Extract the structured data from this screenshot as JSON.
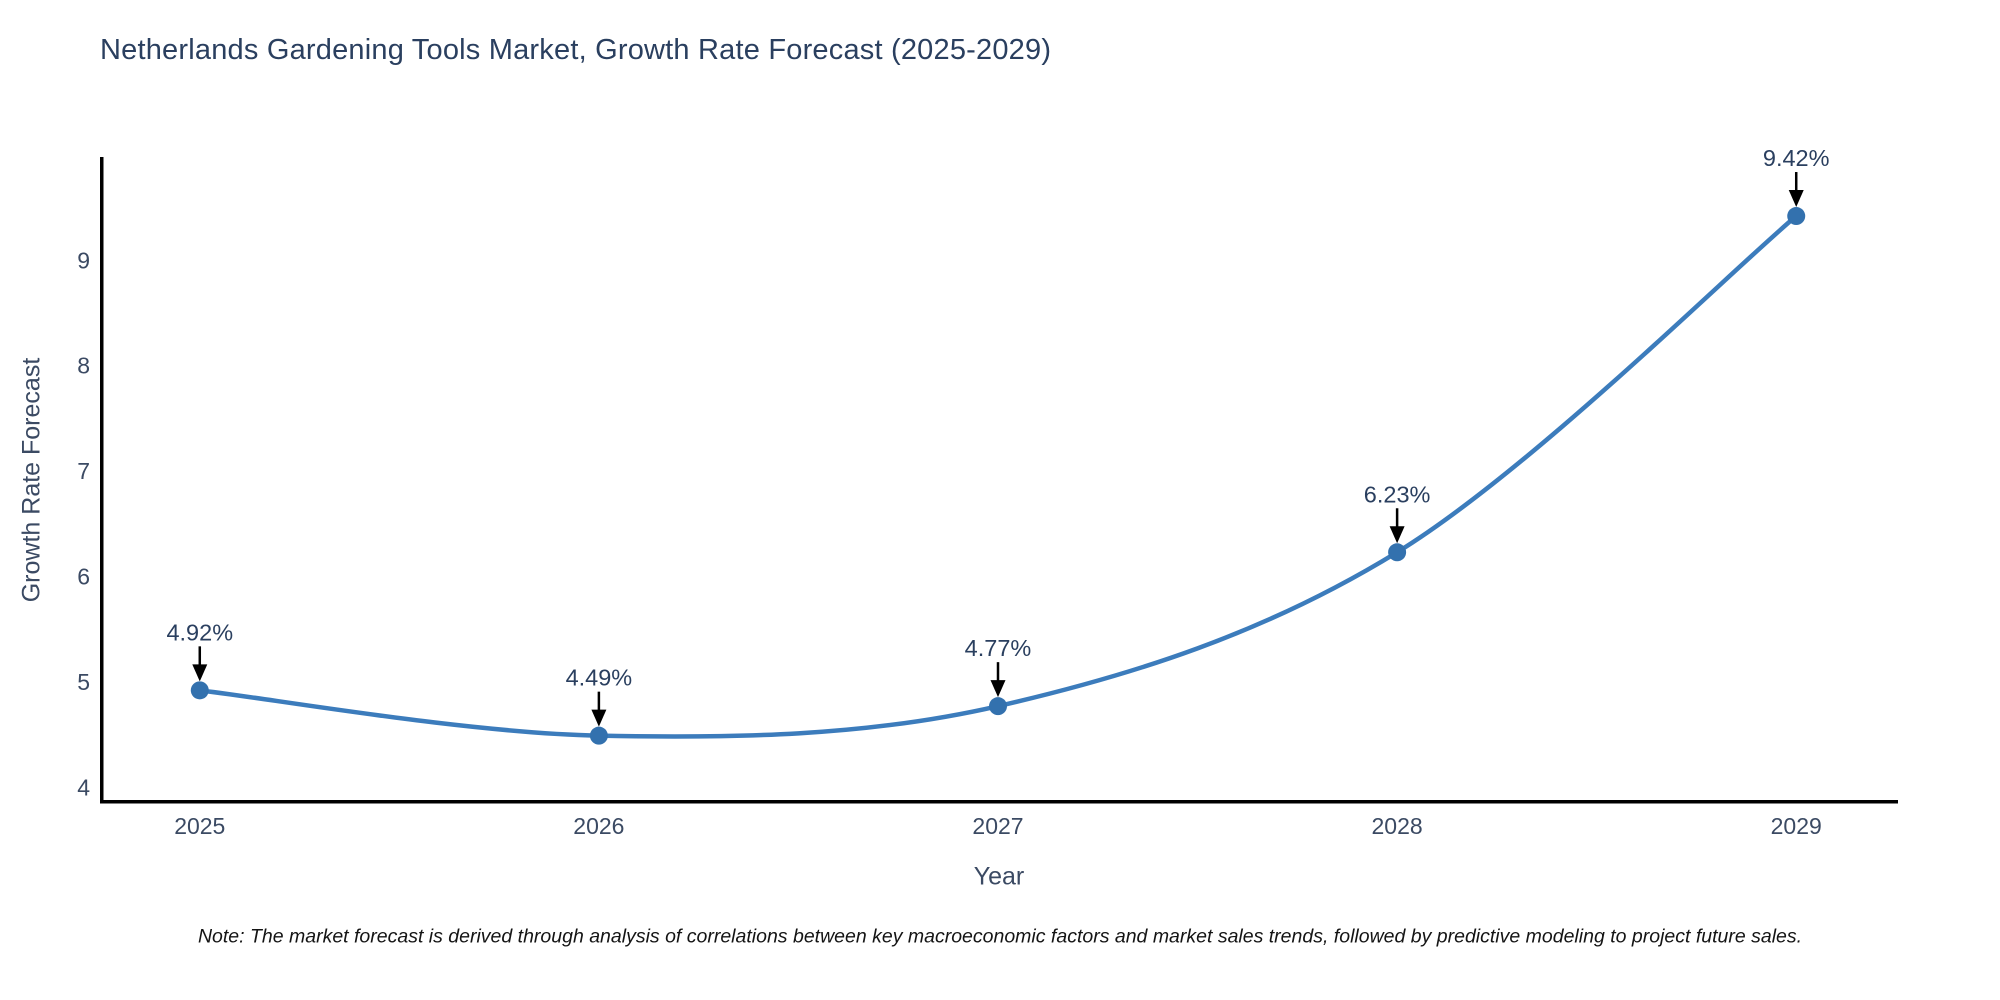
{
  "note": "Note: The market forecast is derived through analysis of correlations between key macroeconomic factors and market sales trends, followed by predictive modeling to project future sales.",
  "chart_data": {
    "type": "line",
    "title": "Netherlands Gardening Tools Market, Growth Rate Forecast (2025-2029)",
    "xlabel": "Year",
    "ylabel": "Growth Rate Forecast",
    "x": [
      2025,
      2026,
      2027,
      2028,
      2029
    ],
    "values": [
      4.92,
      4.49,
      4.77,
      6.23,
      9.42
    ],
    "point_labels": [
      "4.92%",
      "4.49%",
      "4.77%",
      "6.23%",
      "9.42%"
    ],
    "series_name": "Growth Rate Forecast",
    "xticks": [
      "2025",
      "2026",
      "2027",
      "2028",
      "2029"
    ],
    "yticks": [
      4,
      5,
      6,
      7,
      8,
      9
    ],
    "xlim": [
      2024.75,
      2029.255
    ],
    "ylim": [
      3.87,
      9.98
    ],
    "line_shape": "spline",
    "grid": false,
    "legend": false,
    "colors": {
      "line": "#3c7cbc",
      "marker": "#3371ae",
      "axis_line": "#000000",
      "title_text": "#2a3f5f",
      "tick_text": "#3b4a63",
      "annotation_text": "#2a3f5f",
      "arrow": "#000000",
      "note_text": "#141414",
      "background": "#ffffff"
    }
  }
}
